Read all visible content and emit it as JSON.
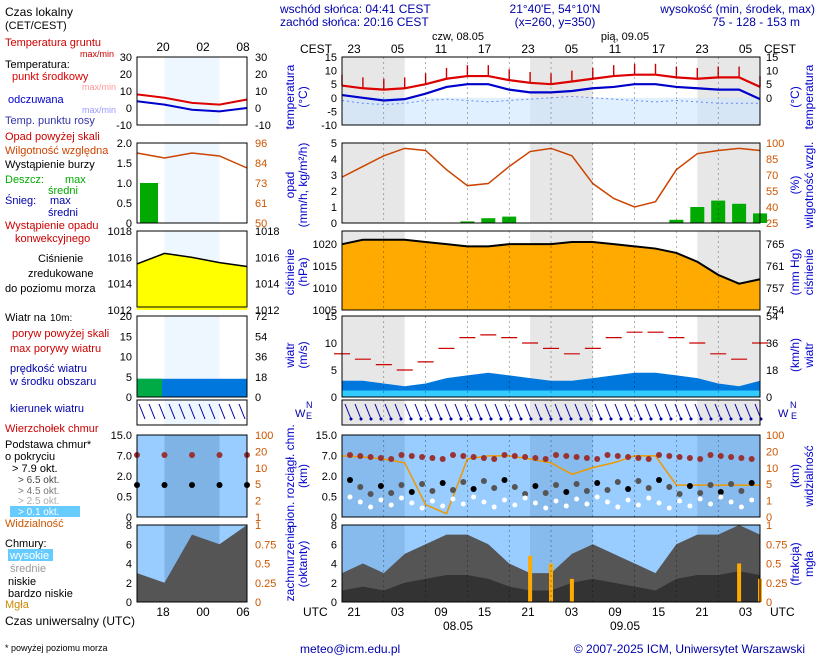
{
  "header": {
    "local_time_label": "Czas lokalny",
    "local_time_zone": "(CET/CEST)",
    "sunrise": "wschód słońca: 04:41 CEST",
    "sunset": "zachód słońca: 20:16 CEST",
    "coords": "21°40'E, 54°10'N",
    "grid": "(x=260,  y=350)",
    "elevation_label": "wysokość (min, środek, max)",
    "elevation_values": "75 - 128 - 153 m"
  },
  "top_axis": {
    "tz_left": "CEST",
    "tz_right": "CEST",
    "day1": "czw, 08.05",
    "day2": "pią, 09.05",
    "hours": [
      "23",
      "05",
      "11",
      "17",
      "23",
      "05",
      "11",
      "17",
      "23",
      "05"
    ],
    "legend_hours": [
      "20",
      "02",
      "08"
    ]
  },
  "bottom_axis": {
    "tz_left": "UTC",
    "tz_right": "UTC",
    "hours": [
      "21",
      "03",
      "09",
      "15",
      "21",
      "03",
      "09",
      "15",
      "21",
      "03"
    ],
    "date1": "08.05",
    "date2": "09.05",
    "legend_hours": [
      "18",
      "00",
      "06"
    ],
    "legend_label": "Czas uniwersalny (UTC)"
  },
  "legend": {
    "temp_ground": "Temperatura gruntu",
    "temp_ground_maxmin": "max/min",
    "temperature": "Temperatura:",
    "temp_mid": "punkt środkowy",
    "temp_mid_maxmin": "max/min",
    "perceived": "odczuwana",
    "perceived_maxmin": "max/min",
    "dew_point": "Temp. punktu rosy",
    "precip_above": "Opad powyżej skali",
    "humidity": "Wilgotność względna",
    "storm": "Wystąpienie burzy",
    "rain": "Deszcz:",
    "rain_max": "max",
    "rain_mean": "średni",
    "snow": "Śnieg:",
    "snow_max": "max",
    "snow_mean": "średni",
    "conv_1": "Wystąpienie opadu",
    "conv_2": "konwekcyjnego",
    "pressure_1": "Ciśnienie",
    "pressure_2": "zredukowane",
    "pressure_3": "do poziomu morza",
    "wind_title": "Wiatr na",
    "wind_height": "10m:",
    "gust_above": "poryw powyżej skali",
    "gust_max": "max porywy wiatru",
    "wind_mean_1": "prędkość wiatru",
    "wind_mean_2": "w środku obszaru",
    "wind_dir": "kierunek wiatru",
    "cloud_top": "Wierzchołek chmur",
    "cloud_base_1": "Podstawa chmur*",
    "cloud_base_2": "o pokryciu",
    "okt_79": "> 7.9 okt.",
    "okt_65": "> 6.5 okt.",
    "okt_45": "> 4.5 okt.",
    "okt_25": "> 2.5 okt.",
    "okt_01": "> 0.1 okt.",
    "visibility": "Widzialność",
    "clouds": "Chmury:",
    "cloud_high": "wysokie",
    "cloud_mid": "średnie",
    "cloud_low": "niskie",
    "cloud_vlow": "bardzo niskie",
    "fog": "Mgła",
    "footnote": "* powyżej poziomu morza"
  },
  "axis_labels": {
    "temp_left_1": "temperatura",
    "temp_left_2": "(°C)",
    "temp_right_1": "(°C)",
    "temp_right_2": "temperatura",
    "precip_left_1": "opad",
    "precip_left_2": "(mm/h, kg/m²/h)",
    "hum_right_1": "(%)",
    "hum_right_2": "wilgotność wzgl.",
    "pres_left_1": "ciśnienie",
    "pres_left_2": "(hPa)",
    "pres_right_1": "(mm Hg)",
    "pres_right_2": "ciśnienie",
    "wind_left_1": "wiatr",
    "wind_left_2": "(m/s)",
    "wind_right_1": "(km/h)",
    "wind_right_2": "wiatr",
    "cloud_left_1": "pion. rozciągł. chm.",
    "cloud_left_2": "(km)",
    "vis_right_1": "(km)",
    "vis_right_2": "widzialność",
    "cc_left_1": "zachmurzenie",
    "cc_left_2": "(oktanty)",
    "fog_right_1": "(frakcja)",
    "fog_right_2": "mgła"
  },
  "footer": {
    "email": "meteo@icm.edu.pl",
    "copyright": "© 2007-2025 ICM, Uniwersytet Warszawski"
  },
  "colors": {
    "temp_red": "#dd0000",
    "temp_blue": "#0000cc",
    "dew": "#aabbff",
    "humidity": "#cc4400",
    "rain": "#00aa00",
    "pressure_fill": "#ffaa00",
    "wind_fill": "#0077dd",
    "orange_axis": "#cc5500"
  },
  "chart_data": [
    {
      "type": "line",
      "panel": "temperature",
      "ylim": [
        -10,
        15
      ],
      "yticks_left": [
        -10,
        -5,
        0,
        5,
        10,
        15
      ],
      "yticks_right": [
        0,
        5,
        10,
        15
      ],
      "x_hours_cest": [
        20,
        23,
        2,
        5,
        8,
        11,
        14,
        17,
        20,
        23,
        2,
        5,
        8,
        11,
        14,
        17,
        20,
        23,
        2,
        5,
        8
      ],
      "series": [
        {
          "name": "punkt środkowy",
          "values": [
            4.5,
            3.5,
            3,
            3.5,
            5,
            7,
            8,
            8,
            6.5,
            5.5,
            5,
            6,
            7,
            8,
            8.5,
            8.5,
            7.5,
            7,
            7.5,
            7.5,
            4
          ]
        },
        {
          "name": "odczuwana",
          "values": [
            1,
            0,
            -1,
            -0.5,
            1.5,
            4,
            5,
            5,
            3,
            2,
            2,
            2.5,
            3.5,
            4,
            5,
            5,
            4,
            3.5,
            3,
            3,
            -0.5
          ]
        },
        {
          "name": "Temp. punktu rosy",
          "values": [
            -1,
            -2,
            -2.5,
            -2,
            -1,
            -0.5,
            -1,
            -1.5,
            -1,
            -0.5,
            0,
            0.5,
            0,
            -0.5,
            -1,
            -1.5,
            -1,
            -1.5,
            -2,
            -2,
            -2
          ]
        }
      ]
    },
    {
      "type": "bar",
      "panel": "precipitation_humidity",
      "ylim_precip": [
        0,
        5
      ],
      "yticks_left": [
        0,
        1,
        2,
        3,
        4,
        5
      ],
      "ylim_humidity": [
        25,
        100
      ],
      "yticks_right": [
        25,
        40,
        55,
        70,
        85,
        100
      ],
      "x_hours_cest": [
        20,
        23,
        2,
        5,
        8,
        11,
        14,
        17,
        20,
        23,
        2,
        5,
        8,
        11,
        14,
        17,
        20,
        23,
        2,
        5,
        8
      ],
      "series": [
        {
          "name": "Wilgotność względna",
          "values": [
            68,
            78,
            88,
            95,
            93,
            75,
            60,
            62,
            78,
            92,
            95,
            88,
            62,
            48,
            40,
            45,
            75,
            90,
            93,
            95,
            93
          ]
        },
        {
          "name": "Deszcz",
          "values": [
            0,
            0,
            0,
            0,
            0,
            0,
            0.1,
            0.3,
            0.4,
            0,
            0,
            0,
            0,
            0,
            0,
            0,
            0.2,
            1,
            1.4,
            1.2,
            0.6
          ]
        }
      ]
    },
    {
      "type": "area",
      "panel": "pressure",
      "ylim": [
        1005,
        1023
      ],
      "yticks_left": [
        1005,
        1010,
        1015,
        1020
      ],
      "yticks_right": [
        754,
        757,
        761,
        765
      ],
      "x_hours_cest": [
        20,
        23,
        2,
        5,
        8,
        11,
        14,
        17,
        20,
        23,
        2,
        5,
        8,
        11,
        14,
        17,
        20,
        23,
        2,
        5,
        8
      ],
      "series": [
        {
          "name": "Ciśnienie",
          "values": [
            1020,
            1021,
            1021,
            1021,
            1020.5,
            1020,
            1019.5,
            1019.5,
            1020,
            1020,
            1020,
            1020.5,
            1020.5,
            1020,
            1019.5,
            1019,
            1018,
            1016,
            1013,
            1011,
            1012
          ]
        }
      ]
    },
    {
      "type": "area",
      "panel": "wind",
      "ylim": [
        0,
        15
      ],
      "yticks_left": [
        0,
        5,
        10,
        15
      ],
      "yticks_right": [
        0,
        18,
        36,
        54
      ],
      "x_hours_cest": [
        20,
        23,
        2,
        5,
        8,
        11,
        14,
        17,
        20,
        23,
        2,
        5,
        8,
        11,
        14,
        17,
        20,
        23,
        2,
        5,
        8
      ],
      "series": [
        {
          "name": "max porywy wiatru",
          "values": [
            8,
            7,
            6,
            5,
            6.5,
            9,
            11,
            11.5,
            11,
            10,
            9,
            8,
            9,
            11,
            12,
            12,
            11,
            10,
            8,
            7,
            10
          ]
        },
        {
          "name": "prędkość wiatru",
          "values": [
            3,
            3,
            2.5,
            2,
            2.5,
            3.5,
            4,
            4.5,
            4,
            3.5,
            3,
            3,
            3.5,
            4,
            4.5,
            4.5,
            4,
            3.5,
            2.5,
            2,
            3
          ]
        }
      ]
    },
    {
      "type": "line",
      "panel": "cloud_visibility",
      "ylim": [
        0,
        15
      ],
      "yticks_left": [
        0,
        0.5,
        2.0,
        7.0,
        15.0
      ],
      "yticks_right": [
        0,
        1,
        5,
        10,
        20,
        100
      ],
      "x_hours_cest": [
        20,
        23,
        2,
        5,
        8,
        11,
        14,
        17,
        20,
        23,
        2,
        5,
        8,
        11,
        14,
        17,
        20,
        23,
        2,
        5,
        8
      ],
      "series": [
        {
          "name": "Widzialność",
          "values": [
            30,
            28,
            25,
            20,
            1,
            0.2,
            25,
            30,
            30,
            25,
            20,
            10,
            15,
            20,
            30,
            30,
            5,
            5,
            5,
            5,
            5
          ]
        }
      ]
    },
    {
      "type": "area",
      "panel": "cloud_cover",
      "ylim": [
        0,
        8
      ],
      "yticks_left": [
        0,
        2,
        4,
        6,
        8
      ],
      "yticks_right": [
        0,
        0.25,
        0.5,
        0.75,
        1
      ],
      "x_hours_cest": [
        20,
        23,
        2,
        5,
        8,
        11,
        14,
        17,
        20,
        23,
        2,
        5,
        8,
        11,
        14,
        17,
        20,
        23,
        2,
        5,
        8
      ],
      "series": [
        {
          "name": "niskie",
          "values": [
            3,
            4,
            3,
            5,
            6,
            7,
            7,
            6,
            4,
            3,
            3,
            5,
            6,
            5,
            4,
            3,
            6,
            7,
            7,
            8,
            7
          ]
        },
        {
          "name": "Mgła",
          "values": [
            0,
            0,
            0,
            0,
            0,
            0,
            0,
            0,
            0,
            0.6,
            0.5,
            0.3,
            0,
            0,
            0,
            0,
            0,
            0,
            0,
            0.5,
            0.3
          ]
        }
      ]
    }
  ]
}
